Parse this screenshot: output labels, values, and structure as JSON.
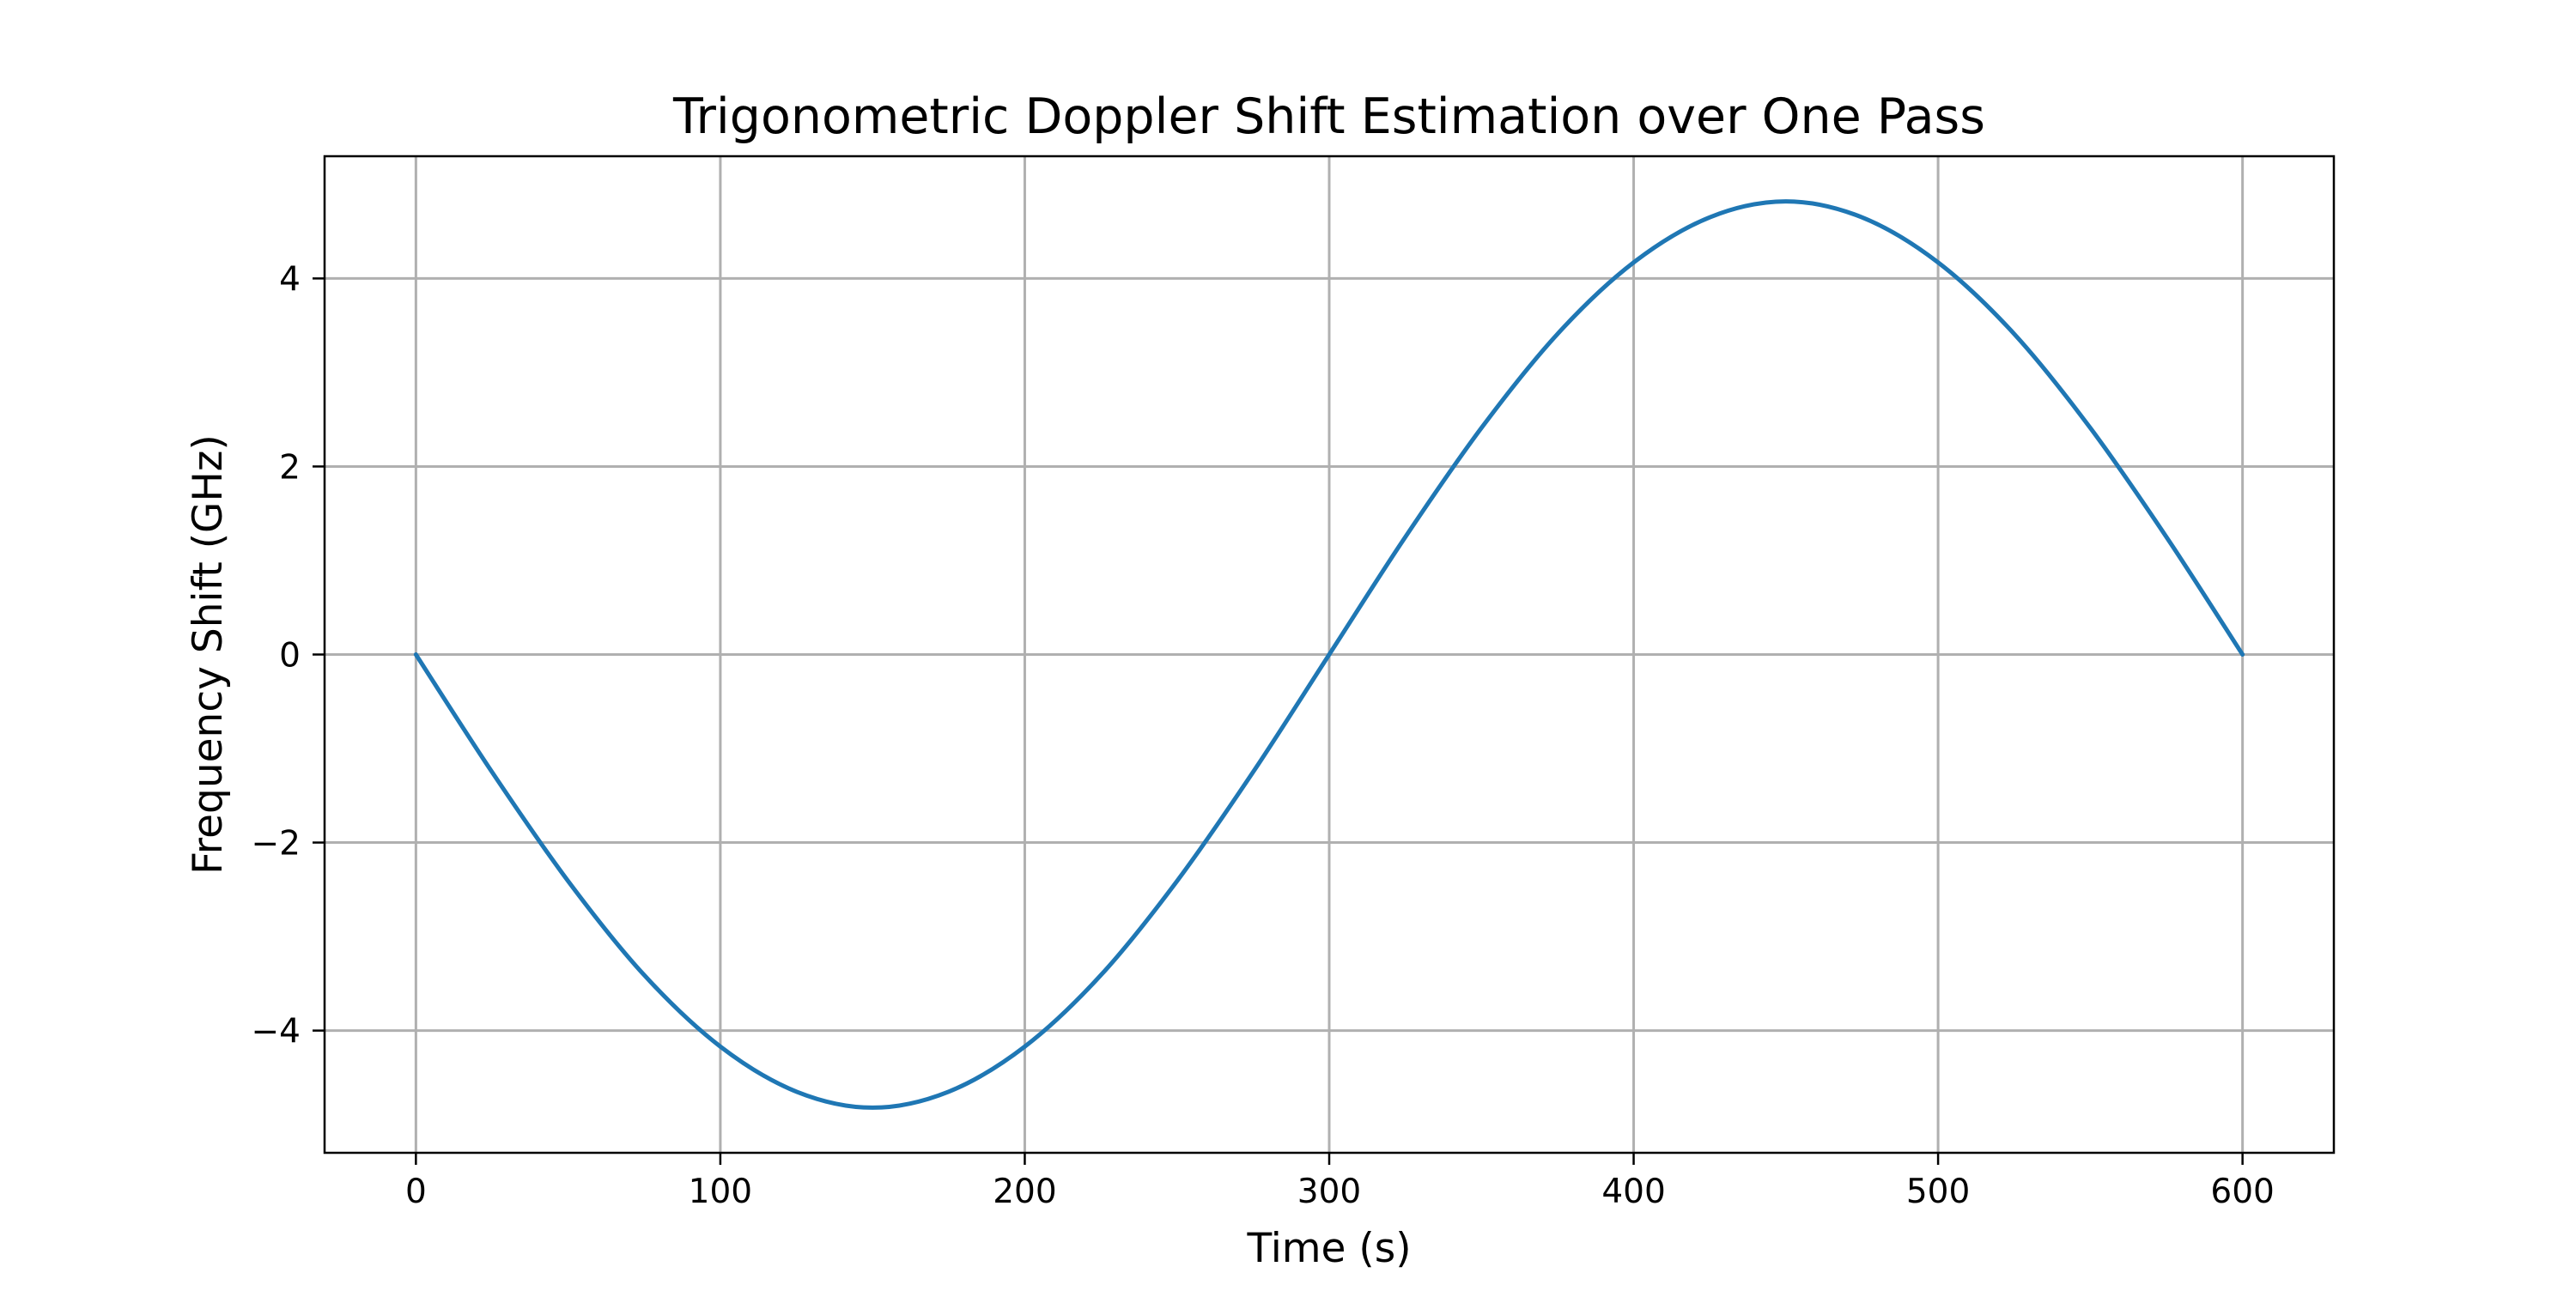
{
  "chart_data": {
    "type": "line",
    "title": "Trigonometric Doppler Shift Estimation over One Pass",
    "xlabel": "Time (s)",
    "ylabel": "Frequency Shift (GHz)",
    "xlim": [
      -30,
      630
    ],
    "ylim": [
      -5.3,
      5.3
    ],
    "xticks": [
      0,
      100,
      200,
      300,
      400,
      500,
      600
    ],
    "yticks": [
      -4,
      -2,
      0,
      2,
      4
    ],
    "grid": true,
    "line_color": "#1f77b4",
    "series": [
      {
        "x": [
          0,
          25,
          50,
          75,
          100,
          125,
          150,
          175,
          200,
          225,
          250,
          275,
          300,
          325,
          350,
          375,
          400,
          425,
          450,
          475,
          500,
          525,
          550,
          575,
          600
        ],
        "y": [
          0,
          -1.25,
          -2.41,
          -3.41,
          -4.17,
          -4.65,
          -4.82,
          -4.65,
          -4.17,
          -3.41,
          -2.41,
          -1.25,
          0,
          1.25,
          2.41,
          3.41,
          4.17,
          4.65,
          4.82,
          4.65,
          4.17,
          3.41,
          2.41,
          1.25,
          0
        ]
      }
    ]
  }
}
